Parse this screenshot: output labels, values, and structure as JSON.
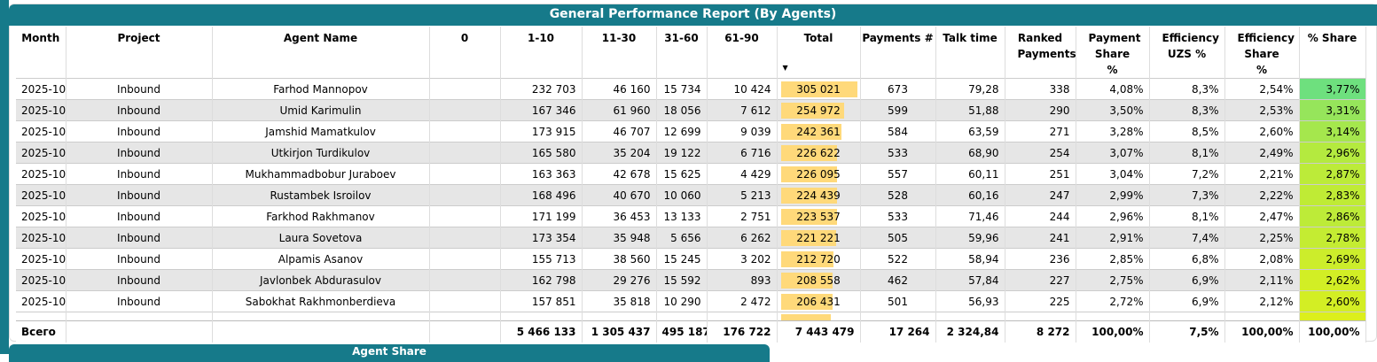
{
  "report": {
    "title": "General Performance Report (By Agents)"
  },
  "columns": [
    "Month",
    "Project",
    "Agent Name",
    "0",
    "1-10",
    "11-30",
    "31-60",
    "61-90",
    "Total",
    "Payments #",
    "Talk time",
    "Ranked Payments",
    "Payment Share %",
    "Efficiency UZS %",
    "Efficiency Share %",
    "% Share"
  ],
  "sort": {
    "column": "Total",
    "direction": "descending"
  },
  "colors": {
    "header": "#167a8a",
    "total_bar": "#ffd97a",
    "share_high": "#6ee07e",
    "share_low": "#dcef1c"
  },
  "rows": [
    [
      "2025-10",
      "Inbound",
      "Farhod Mannopov",
      "",
      "232 703",
      "46 160",
      "15 734",
      "10 424",
      "305 021",
      "673",
      "79,28",
      "338",
      "4,08%",
      "8,3%",
      "2,54%",
      "3,77%"
    ],
    [
      "2025-10",
      "Inbound",
      "Umid Karimulin",
      "",
      "167 346",
      "61 960",
      "18 056",
      "7 612",
      "254 972",
      "599",
      "51,88",
      "290",
      "3,50%",
      "8,3%",
      "2,53%",
      "3,31%"
    ],
    [
      "2025-10",
      "Inbound",
      "Jamshid Mamatkulov",
      "",
      "173 915",
      "46 707",
      "12 699",
      "9 039",
      "242 361",
      "584",
      "63,59",
      "271",
      "3,28%",
      "8,5%",
      "2,60%",
      "3,14%"
    ],
    [
      "2025-10",
      "Inbound",
      "Utkirjon Turdikulov",
      "",
      "165 580",
      "35 204",
      "19 122",
      "6 716",
      "226 622",
      "533",
      "68,90",
      "254",
      "3,07%",
      "8,1%",
      "2,49%",
      "2,96%"
    ],
    [
      "2025-10",
      "Inbound",
      "Mukhammadbobur Juraboev",
      "",
      "163 363",
      "42 678",
      "15 625",
      "4 429",
      "226 095",
      "557",
      "60,11",
      "251",
      "3,04%",
      "7,2%",
      "2,21%",
      "2,87%"
    ],
    [
      "2025-10",
      "Inbound",
      "Rustambek Isroilov",
      "",
      "168 496",
      "40 670",
      "10 060",
      "5 213",
      "224 439",
      "528",
      "60,16",
      "247",
      "2,99%",
      "7,3%",
      "2,22%",
      "2,83%"
    ],
    [
      "2025-10",
      "Inbound",
      "Farkhod Rakhmanov",
      "",
      "171 199",
      "36 453",
      "13 133",
      "2 751",
      "223 537",
      "533",
      "71,46",
      "244",
      "2,96%",
      "8,1%",
      "2,47%",
      "2,86%"
    ],
    [
      "2025-10",
      "Inbound",
      "Laura Sovetova",
      "",
      "173 354",
      "35 948",
      "5 656",
      "6 262",
      "221 221",
      "505",
      "59,96",
      "241",
      "2,91%",
      "7,4%",
      "2,25%",
      "2,78%"
    ],
    [
      "2025-10",
      "Inbound",
      "Alpamis Asanov",
      "",
      "155 713",
      "38 560",
      "15 245",
      "3 202",
      "212 720",
      "522",
      "58,94",
      "236",
      "2,85%",
      "6,8%",
      "2,08%",
      "2,69%"
    ],
    [
      "2025-10",
      "Inbound",
      "Javlonbek Abdurasulov",
      "",
      "162 798",
      "29 276",
      "15 592",
      "893",
      "208 558",
      "462",
      "57,84",
      "227",
      "2,75%",
      "6,9%",
      "2,11%",
      "2,62%"
    ],
    [
      "2025-10",
      "Inbound",
      "Sabokhat Rakhmonberdieva",
      "",
      "157 851",
      "35 818",
      "10 290",
      "2 472",
      "206 431",
      "501",
      "56,93",
      "225",
      "2,72%",
      "6,9%",
      "2,12%",
      "2,60%"
    ]
  ],
  "footer": [
    "Всего",
    "",
    "",
    "",
    "5 466 133",
    "1 305 437",
    "495 187",
    "176 722",
    "7 443 479",
    "17 264",
    "2 324,84",
    "8 272",
    "100,00%",
    "7,5%",
    "100,00%",
    "100,00%"
  ],
  "next_panel": {
    "title": "Agent Share"
  }
}
